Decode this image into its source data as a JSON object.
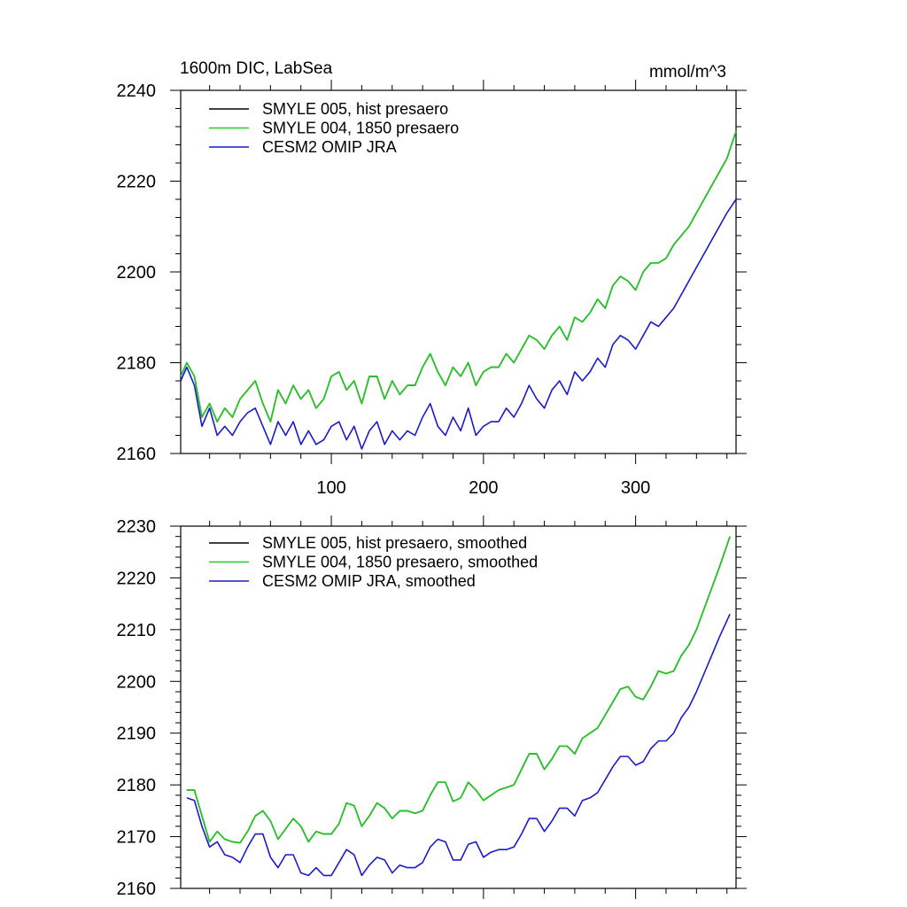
{
  "figure": {
    "title_left": "1600m DIC, LabSea",
    "title_right": "mmol/m^3"
  },
  "colors": {
    "smyle005": "#000000",
    "smyle004": "#22cc22",
    "omip": "#1a1acc",
    "axis": "#000000"
  },
  "chart_data": [
    {
      "type": "line",
      "panel": "top",
      "xlim": [
        1,
        366
      ],
      "ylim": [
        2160,
        2240
      ],
      "xticks": [
        100,
        200,
        300
      ],
      "yticks": [
        2160,
        2180,
        2200,
        2220,
        2240
      ],
      "legend_position": "top-left",
      "series": [
        {
          "name": "SMYLE 005, hist presaero",
          "color_key": "smyle005",
          "x": [
            1,
            5,
            10,
            15,
            20,
            25,
            30,
            35,
            40,
            45,
            50,
            55,
            60,
            65,
            70,
            75,
            80,
            85,
            90,
            95,
            100,
            105,
            110,
            115,
            120,
            125,
            130,
            135,
            140,
            145,
            150,
            155,
            160,
            165,
            170,
            175,
            180,
            185,
            190,
            195,
            200,
            205,
            210,
            215,
            220,
            225,
            230,
            235,
            240,
            245,
            250,
            255,
            260,
            265,
            270,
            275,
            280,
            285,
            290,
            295,
            300,
            305,
            310,
            315,
            320,
            325,
            330,
            335,
            340,
            345,
            350,
            355,
            360,
            366
          ],
          "values": [
            2177,
            2180,
            2177,
            2168,
            2171,
            2167,
            2170,
            2168,
            2172,
            2174,
            2176,
            2171,
            2167,
            2174,
            2171,
            2175,
            2172,
            2174,
            2170,
            2172,
            2177,
            2178,
            2174,
            2176,
            2171,
            2177,
            2177,
            2172,
            2176,
            2173,
            2175,
            2175,
            2179,
            2182,
            2178,
            2175,
            2179,
            2177,
            2180,
            2175,
            2178,
            2179,
            2179,
            2182,
            2180,
            2183,
            2186,
            2185,
            2183,
            2186,
            2188,
            2185,
            2190,
            2189,
            2191,
            2194,
            2192,
            2197,
            2199,
            2198,
            2196,
            2200,
            2202,
            2202,
            2203,
            2206,
            2208,
            2210,
            2213,
            2216,
            2219,
            2222,
            2225,
            2231
          ]
        },
        {
          "name": "SMYLE 004, 1850 presaero",
          "color_key": "smyle004",
          "x": [
            1,
            5,
            10,
            15,
            20,
            25,
            30,
            35,
            40,
            45,
            50,
            55,
            60,
            65,
            70,
            75,
            80,
            85,
            90,
            95,
            100,
            105,
            110,
            115,
            120,
            125,
            130,
            135,
            140,
            145,
            150,
            155,
            160,
            165,
            170,
            175,
            180,
            185,
            190,
            195,
            200,
            205,
            210,
            215,
            220,
            225,
            230,
            235,
            240,
            245,
            250,
            255,
            260,
            265,
            270,
            275,
            280,
            285,
            290,
            295,
            300,
            305,
            310,
            315,
            320,
            325,
            330,
            335,
            340,
            345,
            350,
            355,
            360,
            366
          ],
          "values": [
            2177,
            2180,
            2177,
            2168,
            2171,
            2167,
            2170,
            2168,
            2172,
            2174,
            2176,
            2171,
            2167,
            2174,
            2171,
            2175,
            2172,
            2174,
            2170,
            2172,
            2177,
            2178,
            2174,
            2176,
            2171,
            2177,
            2177,
            2172,
            2176,
            2173,
            2175,
            2175,
            2179,
            2182,
            2178,
            2175,
            2179,
            2177,
            2180,
            2175,
            2178,
            2179,
            2179,
            2182,
            2180,
            2183,
            2186,
            2185,
            2183,
            2186,
            2188,
            2185,
            2190,
            2189,
            2191,
            2194,
            2192,
            2197,
            2199,
            2198,
            2196,
            2200,
            2202,
            2202,
            2203,
            2206,
            2208,
            2210,
            2213,
            2216,
            2219,
            2222,
            2225,
            2231
          ]
        },
        {
          "name": "CESM2 OMIP JRA",
          "color_key": "omip",
          "x": [
            1,
            5,
            10,
            15,
            20,
            25,
            30,
            35,
            40,
            45,
            50,
            55,
            60,
            65,
            70,
            75,
            80,
            85,
            90,
            95,
            100,
            105,
            110,
            115,
            120,
            125,
            130,
            135,
            140,
            145,
            150,
            155,
            160,
            165,
            170,
            175,
            180,
            185,
            190,
            195,
            200,
            205,
            210,
            215,
            220,
            225,
            230,
            235,
            240,
            245,
            250,
            255,
            260,
            265,
            270,
            275,
            280,
            285,
            290,
            295,
            300,
            305,
            310,
            315,
            320,
            325,
            330,
            335,
            340,
            345,
            350,
            355,
            360,
            366
          ],
          "values": [
            2176,
            2179,
            2175,
            2166,
            2170,
            2164,
            2166,
            2164,
            2167,
            2169,
            2170,
            2166,
            2162,
            2167,
            2164,
            2167,
            2162,
            2165,
            2162,
            2163,
            2166,
            2167,
            2163,
            2166,
            2161,
            2165,
            2167,
            2162,
            2165,
            2163,
            2165,
            2164,
            2168,
            2171,
            2166,
            2164,
            2168,
            2165,
            2170,
            2164,
            2166,
            2167,
            2167,
            2170,
            2168,
            2171,
            2175,
            2172,
            2170,
            2174,
            2176,
            2173,
            2178,
            2176,
            2178,
            2181,
            2179,
            2184,
            2186,
            2185,
            2183,
            2186,
            2189,
            2188,
            2190,
            2192,
            2195,
            2198,
            2201,
            2204,
            2207,
            2210,
            2213,
            2216
          ]
        }
      ]
    },
    {
      "type": "line",
      "panel": "bottom",
      "xlim": [
        1,
        366
      ],
      "ylim": [
        2160,
        2230
      ],
      "xticks": [
        100,
        200,
        300
      ],
      "yticks": [
        2160,
        2170,
        2180,
        2190,
        2200,
        2210,
        2220,
        2230
      ],
      "legend_position": "top-left",
      "series": [
        {
          "name": "SMYLE 005, hist presaero, smoothed",
          "color_key": "smyle005",
          "x": [
            5,
            10,
            15,
            20,
            25,
            30,
            35,
            40,
            45,
            50,
            55,
            60,
            65,
            70,
            75,
            80,
            85,
            90,
            95,
            100,
            105,
            110,
            115,
            120,
            125,
            130,
            135,
            140,
            145,
            150,
            155,
            160,
            165,
            170,
            175,
            180,
            185,
            190,
            195,
            200,
            205,
            210,
            215,
            220,
            225,
            230,
            235,
            240,
            245,
            250,
            255,
            260,
            265,
            270,
            275,
            280,
            285,
            290,
            295,
            300,
            305,
            310,
            315,
            320,
            325,
            330,
            335,
            340,
            345,
            350,
            355,
            362
          ],
          "values": [
            2179,
            2179,
            2174,
            2169,
            2171,
            2169.5,
            2169,
            2168.8,
            2171,
            2174,
            2175,
            2173,
            2169.5,
            2171.5,
            2173.5,
            2172,
            2169,
            2171,
            2170.5,
            2170.5,
            2172.5,
            2176.5,
            2176,
            2172,
            2174,
            2176.5,
            2175.5,
            2173.5,
            2175,
            2175,
            2174.5,
            2175,
            2178,
            2180.5,
            2180.5,
            2176.8,
            2177.5,
            2180.5,
            2179,
            2177,
            2178,
            2179,
            2179.5,
            2180,
            2183,
            2186,
            2186,
            2183,
            2185,
            2187.5,
            2187.5,
            2186,
            2189,
            2190,
            2191,
            2193.5,
            2196,
            2198.5,
            2199,
            2197,
            2196.5,
            2199,
            2202,
            2201.5,
            2202,
            2205,
            2207,
            2210,
            2214,
            2218,
            2222,
            2228
          ]
        },
        {
          "name": "SMYLE 004, 1850 presaero, smoothed",
          "color_key": "smyle004",
          "x": [
            5,
            10,
            15,
            20,
            25,
            30,
            35,
            40,
            45,
            50,
            55,
            60,
            65,
            70,
            75,
            80,
            85,
            90,
            95,
            100,
            105,
            110,
            115,
            120,
            125,
            130,
            135,
            140,
            145,
            150,
            155,
            160,
            165,
            170,
            175,
            180,
            185,
            190,
            195,
            200,
            205,
            210,
            215,
            220,
            225,
            230,
            235,
            240,
            245,
            250,
            255,
            260,
            265,
            270,
            275,
            280,
            285,
            290,
            295,
            300,
            305,
            310,
            315,
            320,
            325,
            330,
            335,
            340,
            345,
            350,
            355,
            362
          ],
          "values": [
            2179,
            2179,
            2174,
            2169,
            2171,
            2169.5,
            2169,
            2168.8,
            2171,
            2174,
            2175,
            2173,
            2169.5,
            2171.5,
            2173.5,
            2172,
            2169,
            2171,
            2170.5,
            2170.5,
            2172.5,
            2176.5,
            2176,
            2172,
            2174,
            2176.5,
            2175.5,
            2173.5,
            2175,
            2175,
            2174.5,
            2175,
            2178,
            2180.5,
            2180.5,
            2176.8,
            2177.5,
            2180.5,
            2179,
            2177,
            2178,
            2179,
            2179.5,
            2180,
            2183,
            2186,
            2186,
            2183,
            2185,
            2187.5,
            2187.5,
            2186,
            2189,
            2190,
            2191,
            2193.5,
            2196,
            2198.5,
            2199,
            2197,
            2196.5,
            2199,
            2202,
            2201.5,
            2202,
            2205,
            2207,
            2210,
            2214,
            2218,
            2222,
            2228
          ]
        },
        {
          "name": "CESM2 OMIP JRA, smoothed",
          "color_key": "omip",
          "x": [
            5,
            10,
            15,
            20,
            25,
            30,
            35,
            40,
            45,
            50,
            55,
            60,
            65,
            70,
            75,
            80,
            85,
            90,
            95,
            100,
            105,
            110,
            115,
            120,
            125,
            130,
            135,
            140,
            145,
            150,
            155,
            160,
            165,
            170,
            175,
            180,
            185,
            190,
            195,
            200,
            205,
            210,
            215,
            220,
            225,
            230,
            235,
            240,
            245,
            250,
            255,
            260,
            265,
            270,
            275,
            280,
            285,
            290,
            295,
            300,
            305,
            310,
            315,
            320,
            325,
            330,
            335,
            340,
            345,
            350,
            355,
            362
          ],
          "values": [
            2177.5,
            2177,
            2172,
            2168,
            2169,
            2166.5,
            2166,
            2165,
            2168,
            2170.5,
            2170.5,
            2166,
            2164,
            2166.5,
            2166.5,
            2163,
            2162.5,
            2164,
            2162.5,
            2162.5,
            2165,
            2167.5,
            2166.5,
            2162.5,
            2164.5,
            2166,
            2165.5,
            2163,
            2164.5,
            2164,
            2164,
            2165,
            2168,
            2169.5,
            2169,
            2165.5,
            2165.5,
            2168.5,
            2169,
            2166,
            2167,
            2167.5,
            2167.5,
            2168,
            2170.5,
            2173.5,
            2173.5,
            2171,
            2173,
            2175.5,
            2175.5,
            2174,
            2177,
            2177.5,
            2178.5,
            2181,
            2183.5,
            2185.5,
            2185.5,
            2183.8,
            2184.5,
            2187,
            2188.5,
            2188.5,
            2190,
            2193,
            2195,
            2198,
            2201.5,
            2205,
            2208.5,
            2213
          ]
        }
      ]
    }
  ]
}
